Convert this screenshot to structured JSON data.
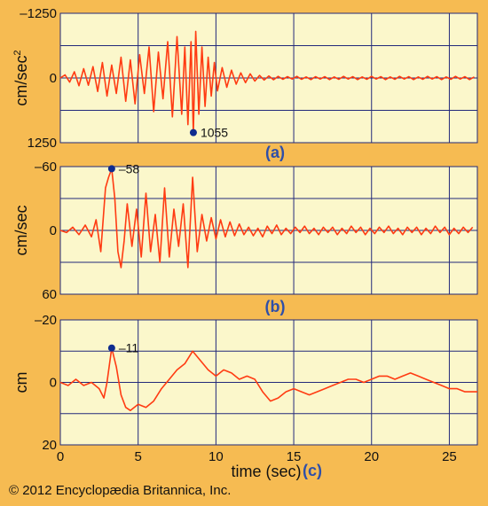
{
  "figure": {
    "background": "#f6bb52",
    "panel_fill": "#fbf7cb",
    "grid_color": "#22297a",
    "trace_color": "#ff3b12",
    "marker_color": "#0f2c8f",
    "panel_label_color": "#2f4fa8",
    "credit": "© 2012 Encyclopædia Britannica, Inc."
  },
  "chart_data": [
    {
      "type": "line",
      "panel_label": "(a)",
      "ylabel": "cm/sec²",
      "ylabel_base": "cm/sec",
      "ylabel_sup": "2",
      "xlim": [
        0,
        26.8
      ],
      "ylim": [
        -1250,
        1250
      ],
      "y_inverted": true,
      "yticks": [
        -1250,
        0,
        1250
      ],
      "ytick_labels": [
        "–1250",
        "0",
        "1250"
      ],
      "grid_y": [
        -1250,
        -625,
        0,
        625,
        1250
      ],
      "grid_x": [
        0,
        5,
        10,
        15,
        20,
        25
      ],
      "annotation": {
        "x": 8.55,
        "y": 1055,
        "label": "1055"
      },
      "series": [
        {
          "x": [
            0,
            0.3,
            0.6,
            0.9,
            1.2,
            1.5,
            1.8,
            2.1,
            2.4,
            2.7,
            3.0,
            3.3,
            3.6,
            3.9,
            4.2,
            4.5,
            4.8,
            5.1,
            5.4,
            5.7,
            6.0,
            6.3,
            6.6,
            6.9,
            7.2,
            7.5,
            7.8,
            8.0,
            8.2,
            8.4,
            8.55,
            8.7,
            8.9,
            9.1,
            9.3,
            9.5,
            9.7,
            9.9,
            10.1,
            10.4,
            10.7,
            11.0,
            11.3,
            11.6,
            11.9,
            12.2,
            12.5,
            12.8,
            13.1,
            13.4,
            13.7,
            14.0,
            14.3,
            14.6,
            14.9,
            15.2,
            15.5,
            15.8,
            16.1,
            16.4,
            16.7,
            17.0,
            17.3,
            17.6,
            17.9,
            18.2,
            18.5,
            18.8,
            19.1,
            19.4,
            19.7,
            20.0,
            20.3,
            20.6,
            20.9,
            21.2,
            21.5,
            21.8,
            22.1,
            22.4,
            22.7,
            23.0,
            23.3,
            23.6,
            23.9,
            24.2,
            24.5,
            24.8,
            25.1,
            25.4,
            25.7,
            26.0,
            26.3,
            26.6
          ],
          "y": [
            0,
            -60,
            80,
            -120,
            150,
            -180,
            140,
            -220,
            260,
            -300,
            350,
            -250,
            300,
            -400,
            450,
            -350,
            500,
            -450,
            300,
            -600,
            650,
            -500,
            400,
            -700,
            750,
            -800,
            700,
            -600,
            900,
            -700,
            1055,
            -900,
            700,
            -600,
            550,
            -400,
            350,
            -300,
            250,
            -200,
            180,
            -150,
            120,
            -100,
            90,
            -80,
            60,
            -50,
            40,
            -40,
            35,
            -30,
            25,
            -25,
            20,
            -30,
            25,
            -20,
            30,
            -25,
            20,
            -25,
            30,
            -20,
            25,
            -30,
            20,
            -25,
            30,
            -20,
            25,
            -30,
            20,
            -25,
            30,
            -20,
            25,
            -30,
            20,
            -25,
            30,
            -20,
            25,
            -30,
            20,
            -25,
            30,
            -20,
            25,
            -30,
            20,
            -25,
            30,
            -20
          ]
        }
      ]
    },
    {
      "type": "line",
      "panel_label": "(b)",
      "ylabel": "cm/sec",
      "xlim": [
        0,
        26.8
      ],
      "ylim": [
        -60,
        60
      ],
      "y_inverted": true,
      "yticks": [
        -60,
        0,
        60
      ],
      "ytick_labels": [
        "–60",
        "0",
        "60"
      ],
      "grid_y": [
        -60,
        -30,
        0,
        30,
        60
      ],
      "grid_x": [
        0,
        5,
        10,
        15,
        20,
        25
      ],
      "annotation": {
        "x": 3.3,
        "y": -58,
        "label": "–58"
      },
      "series": [
        {
          "x": [
            0,
            0.4,
            0.8,
            1.2,
            1.6,
            2.0,
            2.3,
            2.6,
            2.9,
            3.1,
            3.3,
            3.5,
            3.7,
            3.9,
            4.1,
            4.3,
            4.6,
            4.9,
            5.2,
            5.5,
            5.8,
            6.1,
            6.4,
            6.7,
            7.0,
            7.3,
            7.6,
            7.9,
            8.2,
            8.5,
            8.8,
            9.1,
            9.4,
            9.7,
            10.0,
            10.3,
            10.6,
            10.9,
            11.2,
            11.5,
            11.8,
            12.1,
            12.4,
            12.7,
            13.0,
            13.3,
            13.6,
            13.9,
            14.2,
            14.5,
            14.8,
            15.1,
            15.4,
            15.7,
            16.0,
            16.3,
            16.6,
            16.9,
            17.2,
            17.5,
            17.8,
            18.1,
            18.4,
            18.7,
            19.0,
            19.3,
            19.6,
            19.9,
            20.2,
            20.5,
            20.8,
            21.1,
            21.4,
            21.7,
            22.0,
            22.3,
            22.6,
            22.9,
            23.2,
            23.5,
            23.8,
            24.1,
            24.4,
            24.7,
            25.0,
            25.3,
            25.6,
            25.9,
            26.2,
            26.5
          ],
          "y": [
            0,
            2,
            -3,
            4,
            -5,
            6,
            -10,
            20,
            -40,
            -50,
            -58,
            -30,
            20,
            35,
            10,
            -25,
            15,
            -20,
            25,
            -35,
            20,
            -15,
            30,
            -40,
            25,
            -20,
            15,
            -25,
            35,
            -50,
            20,
            -15,
            10,
            -12,
            8,
            -10,
            6,
            -8,
            5,
            -6,
            4,
            -3,
            5,
            -2,
            6,
            -4,
            3,
            -5,
            4,
            -2,
            3,
            -3,
            2,
            -4,
            3,
            -2,
            4,
            -3,
            2,
            -3,
            4,
            -2,
            3,
            -4,
            2,
            -3,
            4,
            -2,
            3,
            -3,
            2,
            -4,
            3,
            -2,
            4,
            -3,
            2,
            -3,
            4,
            -2,
            3,
            -4,
            2,
            -3,
            4,
            -2,
            3,
            -3,
            2,
            -3
          ]
        }
      ]
    },
    {
      "type": "line",
      "panel_label": "(c)",
      "ylabel": "cm",
      "xlabel": "time (sec)",
      "xlim": [
        0,
        26.8
      ],
      "ylim": [
        -20,
        20
      ],
      "y_inverted": true,
      "yticks": [
        -20,
        0,
        20
      ],
      "ytick_labels": [
        "–20",
        "0",
        "20"
      ],
      "grid_y": [
        -20,
        -10,
        0,
        10,
        20
      ],
      "grid_x": [
        0,
        5,
        10,
        15,
        20,
        25
      ],
      "xticks": [
        0,
        5,
        10,
        15,
        20,
        25
      ],
      "xtick_labels": [
        "0",
        "5",
        "10",
        "15",
        "20",
        "25"
      ],
      "annotation": {
        "x": 3.3,
        "y": -11,
        "label": "–11"
      },
      "series": [
        {
          "x": [
            0,
            0.5,
            1.0,
            1.5,
            2.0,
            2.5,
            2.8,
            3.0,
            3.3,
            3.6,
            3.9,
            4.2,
            4.5,
            5.0,
            5.5,
            6.0,
            6.5,
            7.0,
            7.5,
            8.0,
            8.5,
            9.0,
            9.5,
            10.0,
            10.5,
            11.0,
            11.5,
            12.0,
            12.5,
            13.0,
            13.5,
            14.0,
            14.5,
            15.0,
            15.5,
            16.0,
            16.5,
            17.0,
            17.5,
            18.0,
            18.5,
            19.0,
            19.5,
            20.0,
            20.5,
            21.0,
            21.5,
            22.0,
            22.5,
            23.0,
            23.5,
            24.0,
            24.5,
            25.0,
            25.5,
            26.0,
            26.5,
            26.8
          ],
          "y": [
            0,
            1,
            -1,
            1,
            0,
            2,
            5,
            0,
            -11,
            -5,
            4,
            8,
            9,
            7,
            8,
            6,
            2,
            -1,
            -4,
            -6,
            -10,
            -7,
            -4,
            -2,
            -4,
            -3,
            -1,
            -2,
            -1,
            3,
            6,
            5,
            3,
            2,
            3,
            4,
            3,
            2,
            1,
            0,
            -1,
            -1,
            0,
            -1,
            -2,
            -2,
            -1,
            -2,
            -3,
            -2,
            -1,
            0,
            1,
            2,
            2,
            3,
            3,
            3
          ]
        }
      ]
    }
  ]
}
